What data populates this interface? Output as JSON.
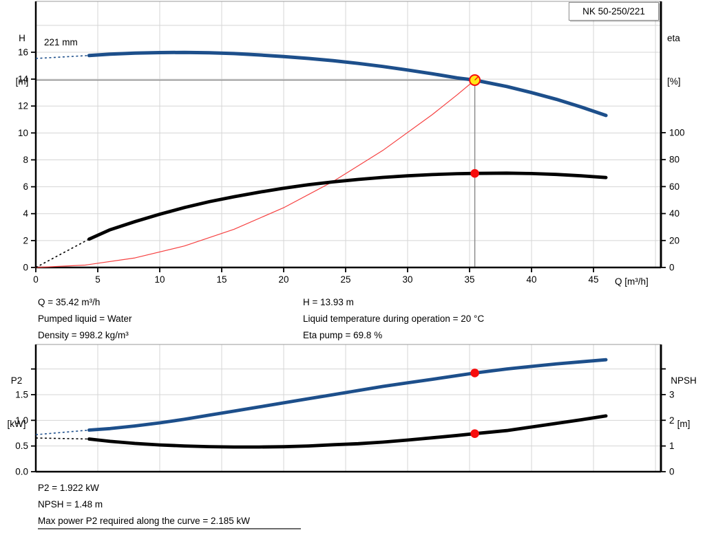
{
  "annotations": {
    "top_left": [
      "Q = 35.42 m³/h",
      "Pumped liquid = Water",
      "Density = 998.2 kg/m³"
    ],
    "top_right": [
      "H = 13.93 m",
      "Liquid temperature during operation = 20 °C",
      "Eta pump = 69.8 %"
    ],
    "bottom": [
      "P2 = 1.922 kW",
      "NPSH = 1.48 m",
      "Max power P2 required along the curve = 2.185 kW"
    ]
  },
  "colors": {
    "curve_blue": "#1d4f8b",
    "curve_black": "#000000",
    "system_red": "#f64040",
    "marker_red": "#f70d0d",
    "duty_fill": "#ffe818",
    "grid": "#d5d5d5",
    "guide": "#8c8c8c",
    "axis": "#000000",
    "border_top": "#9a9a9a"
  },
  "chart_data": [
    {
      "type": "line",
      "name": "hq-efficiency-chart",
      "title": "NK 50-250/221",
      "x_axis": {
        "label": "Q [m³/h]",
        "range": [
          0,
          50.44
        ],
        "ticks": [
          0,
          5,
          10,
          15,
          20,
          25,
          30,
          35,
          40,
          45
        ],
        "grid": [
          5,
          10,
          15,
          20,
          25,
          30,
          35,
          40,
          45,
          50
        ]
      },
      "left_axis": {
        "label": "H [m]",
        "label_lines": [
          "H",
          "[m]"
        ],
        "range": [
          0,
          19.78
        ],
        "ticks": [
          0,
          2,
          4,
          6,
          8,
          10,
          12,
          14,
          16
        ],
        "grid": [
          2,
          4,
          6,
          8,
          10,
          12,
          14,
          16,
          18
        ]
      },
      "right_axis": {
        "label": "eta [%]",
        "label_lines": [
          "eta",
          "[%]"
        ],
        "range": [
          0,
          197.4
        ],
        "ticks": [
          0,
          20,
          40,
          60,
          80,
          100
        ]
      },
      "series": [
        {
          "name": "system-curve",
          "axis": "left",
          "color": "#f64040",
          "width": 1.2,
          "x": [
            0,
            4,
            8,
            12,
            16,
            20,
            24,
            28,
            32,
            34,
            35.42
          ],
          "y": [
            0,
            0.18,
            0.71,
            1.6,
            2.84,
            4.44,
            6.4,
            8.7,
            11.37,
            12.84,
            13.93
          ]
        },
        {
          "name": "efficiency-curve",
          "axis": "right",
          "color": "#000000",
          "width": 4.8,
          "x": [
            4.3,
            6,
            8,
            10,
            12,
            14,
            16,
            18,
            20,
            22,
            24,
            26,
            28,
            30,
            32,
            34,
            35.42,
            38,
            40,
            42,
            44,
            46
          ],
          "y": [
            21,
            28,
            34,
            39.5,
            44.5,
            48.8,
            52.5,
            55.8,
            58.8,
            61.4,
            63.5,
            65.3,
            66.8,
            68,
            68.9,
            69.6,
            69.8,
            70,
            69.7,
            69,
            68,
            66.7
          ],
          "lead": {
            "x": [
              0,
              4.3
            ],
            "y": [
              0,
              21
            ]
          }
        },
        {
          "name": "head-curve",
          "label": "221 mm",
          "axis": "left",
          "color": "#1d4f8b",
          "width": 5,
          "x": [
            4.3,
            6,
            8,
            10,
            12,
            14,
            16,
            18,
            20,
            22,
            24,
            26,
            28,
            30,
            32,
            34,
            35.42,
            38,
            40,
            42,
            44,
            46
          ],
          "y": [
            15.76,
            15.86,
            15.93,
            15.97,
            15.99,
            15.96,
            15.9,
            15.8,
            15.68,
            15.54,
            15.37,
            15.17,
            14.94,
            14.68,
            14.4,
            14.09,
            13.93,
            13.45,
            13.0,
            12.5,
            11.93,
            11.3
          ],
          "lead": {
            "x": [
              0,
              4.3
            ],
            "y": [
              15.54,
              15.76
            ]
          }
        }
      ],
      "guides": [
        {
          "type": "h",
          "v": 13.93,
          "q0": 0,
          "q1": 35.42
        },
        {
          "type": "v",
          "q": 35.42,
          "v0": 13.93,
          "v1": 0
        }
      ],
      "markers": [
        {
          "name": "duty-point-marker",
          "style": "duty",
          "axis": "left",
          "q": 35.42,
          "v": 13.93
        },
        {
          "name": "efficiency-point-marker",
          "style": "dot",
          "axis": "right",
          "q": 35.42,
          "v": 69.8
        }
      ]
    },
    {
      "type": "line",
      "name": "p2-npsh-chart",
      "x_axis": {
        "label": "",
        "range": [
          0,
          50.44
        ],
        "ticks": [],
        "grid": [
          5,
          10,
          15,
          20,
          25,
          30,
          35,
          40,
          45,
          50
        ]
      },
      "left_axis": {
        "label": "P2 [kW]",
        "label_lines": [
          "P2",
          "[kW]"
        ],
        "range": [
          0,
          2.477
        ],
        "ticks": [
          0,
          0.5,
          1,
          1.5
        ],
        "tick_labels": [
          "0.0",
          "0.5",
          "1.0",
          "1.5"
        ],
        "unlabeled_ticks": [
          2
        ],
        "grid": [
          0.5,
          1,
          1.5,
          2
        ]
      },
      "right_axis": {
        "label": "NPSH [m]",
        "label_lines": [
          "NPSH",
          "[m]"
        ],
        "range": [
          0,
          4.95
        ],
        "ticks": [
          0,
          1,
          2,
          3
        ],
        "unlabeled_ticks": [
          4
        ]
      },
      "series": [
        {
          "name": "p2-curve",
          "axis": "left",
          "color": "#1d4f8b",
          "width": 4.8,
          "x": [
            4.3,
            6,
            8,
            10,
            12,
            14,
            16,
            18,
            20,
            22,
            24,
            26,
            28,
            30,
            32,
            34,
            35.42,
            38,
            40,
            42,
            44,
            46
          ],
          "y": [
            0.81,
            0.84,
            0.89,
            0.95,
            1.02,
            1.1,
            1.18,
            1.26,
            1.34,
            1.42,
            1.5,
            1.58,
            1.66,
            1.73,
            1.8,
            1.87,
            1.922,
            2.0,
            2.05,
            2.1,
            2.14,
            2.18
          ],
          "lead": {
            "x": [
              0,
              4.3
            ],
            "y": [
              0.72,
              0.81
            ]
          }
        },
        {
          "name": "npsh-curve",
          "axis": "right",
          "color": "#000000",
          "width": 4.8,
          "x": [
            4.3,
            6,
            8,
            10,
            12,
            14,
            16,
            18,
            20,
            22,
            24,
            26,
            28,
            30,
            32,
            34,
            35.42,
            38,
            40,
            42,
            44,
            46
          ],
          "y": [
            1.27,
            1.18,
            1.1,
            1.04,
            1.0,
            0.975,
            0.96,
            0.96,
            0.97,
            1.0,
            1.05,
            1.09,
            1.15,
            1.23,
            1.32,
            1.41,
            1.48,
            1.6,
            1.74,
            1.88,
            2.02,
            2.17
          ],
          "lead": {
            "x": [
              0,
              4.3
            ],
            "y": [
              1.31,
              1.27
            ]
          }
        }
      ],
      "guides": [],
      "markers": [
        {
          "name": "p2-point-marker",
          "style": "dot",
          "axis": "left",
          "q": 35.42,
          "v": 1.922
        },
        {
          "name": "npsh-point-marker",
          "style": "dot",
          "axis": "right",
          "q": 35.42,
          "v": 1.48
        }
      ]
    }
  ]
}
